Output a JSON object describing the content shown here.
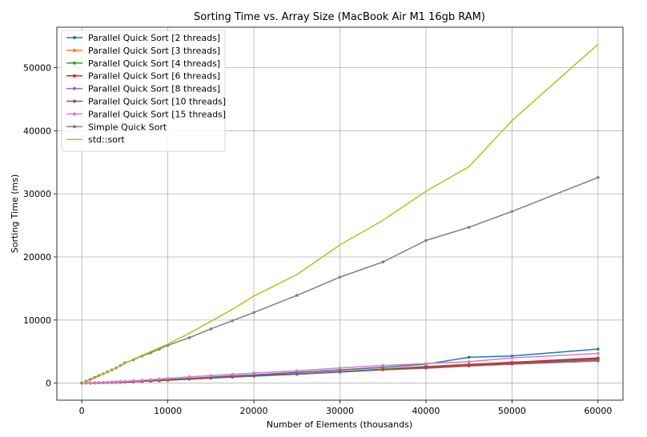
{
  "chart_data": {
    "type": "line",
    "title": "Sorting Time vs. Array Size (MacBook Air M1 16gb RAM)",
    "xlabel": "Number of Elements (thousands)",
    "ylabel": "Sorting Time (ms)",
    "xlim": [
      -2900,
      62900
    ],
    "ylim": [
      -2700,
      56400
    ],
    "xticks": [
      0,
      10000,
      20000,
      30000,
      40000,
      50000,
      60000
    ],
    "yticks": [
      0,
      10000,
      20000,
      30000,
      40000,
      50000
    ],
    "grid": true,
    "legend_position": "top-left",
    "x": [
      0,
      500,
      1000,
      1500,
      2000,
      2500,
      3000,
      3500,
      4000,
      4500,
      5000,
      6000,
      7000,
      8000,
      9000,
      10000,
      12500,
      15000,
      17500,
      20000,
      25000,
      30000,
      35000,
      40000,
      45000,
      50000,
      60000
    ],
    "series": [
      {
        "name": "Parallel Quick Sort [2 threads]",
        "color": "#1f77b4",
        "marker": "circle",
        "values": [
          0,
          20,
          40,
          60,
          80,
          100,
          120,
          140,
          170,
          200,
          230,
          290,
          350,
          420,
          490,
          560,
          750,
          950,
          1150,
          1300,
          1700,
          2100,
          2500,
          3000,
          4100,
          4300,
          5400
        ]
      },
      {
        "name": "Parallel Quick Sort [3 threads]",
        "color": "#ff7f0e",
        "marker": "circle",
        "values": [
          0,
          15,
          30,
          45,
          60,
          80,
          100,
          120,
          140,
          160,
          190,
          240,
          290,
          350,
          410,
          480,
          650,
          830,
          1000,
          1150,
          1450,
          1850,
          2250,
          2650,
          3000,
          3300,
          3800
        ]
      },
      {
        "name": "Parallel Quick Sort [4 threads]",
        "color": "#2ca02c",
        "marker": "circle",
        "values": [
          0,
          15,
          30,
          45,
          60,
          80,
          100,
          120,
          140,
          160,
          190,
          240,
          290,
          350,
          410,
          480,
          650,
          820,
          990,
          1150,
          1450,
          1800,
          2200,
          2600,
          2900,
          3250,
          3900
        ]
      },
      {
        "name": "Parallel Quick Sort [6 threads]",
        "color": "#d62728",
        "marker": "circle",
        "values": [
          0,
          15,
          30,
          45,
          60,
          80,
          100,
          120,
          140,
          160,
          190,
          240,
          290,
          350,
          410,
          480,
          650,
          820,
          1000,
          1150,
          1450,
          1800,
          2150,
          2550,
          2900,
          3300,
          4000
        ]
      },
      {
        "name": "Parallel Quick Sort [8 threads]",
        "color": "#9467bd",
        "marker": "circle",
        "values": [
          0,
          15,
          30,
          45,
          60,
          80,
          100,
          120,
          140,
          160,
          190,
          240,
          290,
          340,
          400,
          470,
          630,
          800,
          960,
          1100,
          1400,
          1750,
          2100,
          2350,
          2700,
          3000,
          3500
        ]
      },
      {
        "name": "Parallel Quick Sort [10 threads]",
        "color": "#8c564b",
        "marker": "circle",
        "values": [
          0,
          15,
          30,
          45,
          60,
          80,
          100,
          120,
          140,
          160,
          190,
          240,
          290,
          340,
          400,
          470,
          640,
          810,
          980,
          1150,
          1450,
          1800,
          2150,
          2450,
          2800,
          3100,
          3700
        ]
      },
      {
        "name": "Parallel Quick Sort [15 threads]",
        "color": "#e377c2",
        "marker": "circle",
        "values": [
          0,
          25,
          50,
          75,
          100,
          130,
          160,
          190,
          220,
          260,
          300,
          380,
          460,
          550,
          650,
          750,
          1000,
          1200,
          1400,
          1600,
          1950,
          2400,
          2800,
          3100,
          3400,
          4000,
          4700
        ]
      },
      {
        "name": "Simple Quick Sort",
        "color": "#7f7f7f",
        "marker": "circle",
        "values": [
          0,
          300,
          600,
          900,
          1200,
          1500,
          1800,
          2100,
          2400,
          2800,
          3200,
          3700,
          4300,
          4800,
          5400,
          6000,
          7200,
          8600,
          9900,
          11200,
          13900,
          16800,
          19200,
          22600,
          24700,
          27200,
          32600
        ]
      },
      {
        "name": "std::sort",
        "color": "#bcbd22",
        "marker": "none",
        "values": [
          0,
          250,
          500,
          800,
          1100,
          1500,
          1800,
          2100,
          2400,
          2750,
          3100,
          3800,
          4400,
          5000,
          5600,
          6200,
          7900,
          9800,
          11700,
          13800,
          17200,
          21900,
          25800,
          30400,
          34300,
          41600,
          53700
        ]
      }
    ]
  }
}
